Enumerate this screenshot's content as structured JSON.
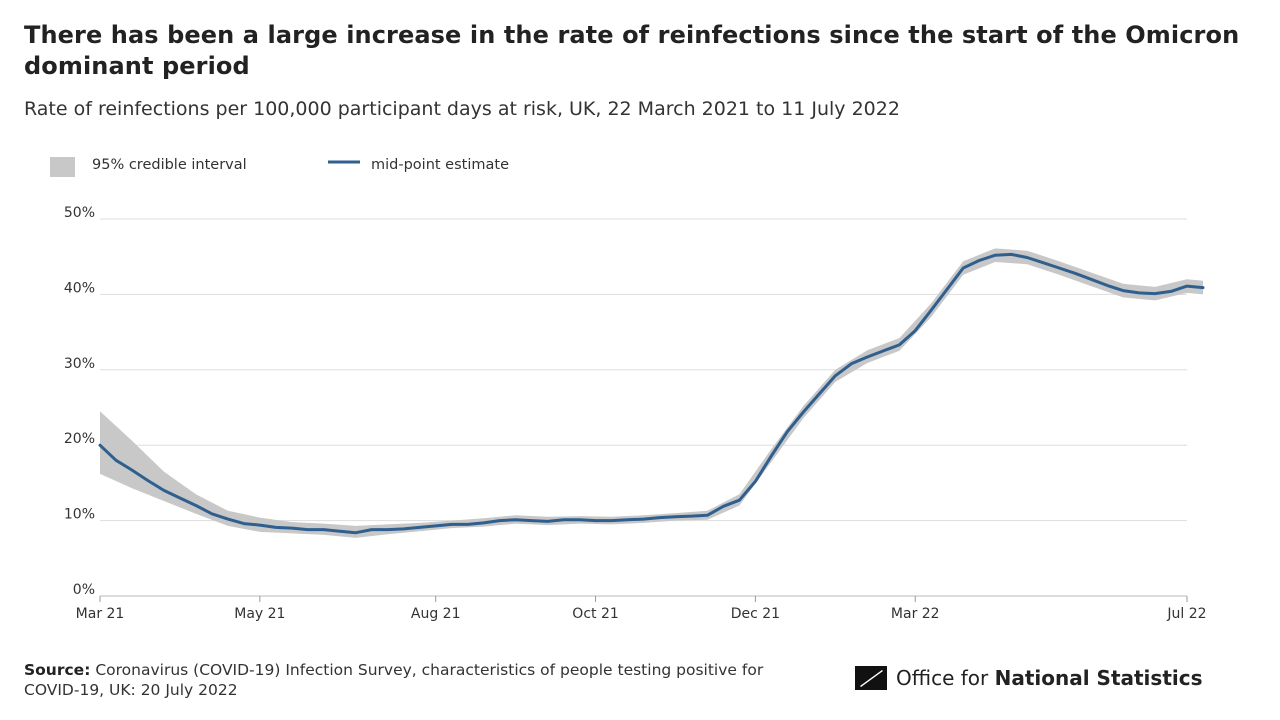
{
  "chart_data": {
    "type": "line",
    "title": "There has been a large increase in the rate of reinfections since the start of the Omicron dominant period",
    "subtitle": "Rate of reinfections per 100,000 participant days at risk, UK, 22 March 2021 to 11 July 2022",
    "x_range": [
      "2021-03-22",
      "2022-07-11"
    ],
    "ylim": [
      0,
      50
    ],
    "grid": true,
    "legend_position": "top-left",
    "y_ticks": [
      {
        "value": 0,
        "label": "0%"
      },
      {
        "value": 10,
        "label": "10%"
      },
      {
        "value": 20,
        "label": "20%"
      },
      {
        "value": 30,
        "label": "30%"
      },
      {
        "value": 40,
        "label": "40%"
      },
      {
        "value": 50,
        "label": "50%"
      }
    ],
    "x_ticks": [
      {
        "date": "2021-03-22",
        "label": "Mar 21"
      },
      {
        "date": "2021-05-31",
        "label": "May 21"
      },
      {
        "date": "2021-08-16",
        "label": "Aug 21"
      },
      {
        "date": "2021-10-25",
        "label": "Oct 21"
      },
      {
        "date": "2022-01-03",
        "label": "Dec 21"
      },
      {
        "date": "2022-03-14",
        "label": "Mar 22"
      },
      {
        "date": "2022-07-11",
        "label": "Jul 22"
      }
    ],
    "legend": [
      {
        "label": "95% credible interval",
        "kind": "band",
        "color": "#c8c8c8"
      },
      {
        "label": "mid-point estimate",
        "kind": "line",
        "color": "#2f5f8f"
      }
    ],
    "series": [
      {
        "name": "mid-point estimate",
        "color": "#2f5f8f",
        "points": [
          {
            "date": "2021-03-22",
            "value": 20.0
          },
          {
            "date": "2021-03-29",
            "value": 18.0
          },
          {
            "date": "2021-04-05",
            "value": 16.7
          },
          {
            "date": "2021-04-12",
            "value": 15.3
          },
          {
            "date": "2021-04-19",
            "value": 14.0
          },
          {
            "date": "2021-04-26",
            "value": 13.0
          },
          {
            "date": "2021-05-03",
            "value": 12.0
          },
          {
            "date": "2021-05-10",
            "value": 10.9
          },
          {
            "date": "2021-05-17",
            "value": 10.2
          },
          {
            "date": "2021-05-24",
            "value": 9.6
          },
          {
            "date": "2021-05-31",
            "value": 9.4
          },
          {
            "date": "2021-06-07",
            "value": 9.1
          },
          {
            "date": "2021-06-14",
            "value": 9.0
          },
          {
            "date": "2021-06-21",
            "value": 8.8
          },
          {
            "date": "2021-06-28",
            "value": 8.8
          },
          {
            "date": "2021-07-05",
            "value": 8.6
          },
          {
            "date": "2021-07-12",
            "value": 8.4
          },
          {
            "date": "2021-07-19",
            "value": 8.8
          },
          {
            "date": "2021-07-26",
            "value": 8.8
          },
          {
            "date": "2021-08-02",
            "value": 8.9
          },
          {
            "date": "2021-08-09",
            "value": 9.1
          },
          {
            "date": "2021-08-16",
            "value": 9.3
          },
          {
            "date": "2021-08-23",
            "value": 9.5
          },
          {
            "date": "2021-08-30",
            "value": 9.5
          },
          {
            "date": "2021-09-06",
            "value": 9.7
          },
          {
            "date": "2021-09-13",
            "value": 10.0
          },
          {
            "date": "2021-09-20",
            "value": 10.1
          },
          {
            "date": "2021-09-27",
            "value": 10.0
          },
          {
            "date": "2021-10-04",
            "value": 9.9
          },
          {
            "date": "2021-10-11",
            "value": 10.1
          },
          {
            "date": "2021-10-18",
            "value": 10.1
          },
          {
            "date": "2021-10-25",
            "value": 10.0
          },
          {
            "date": "2021-11-01",
            "value": 10.0
          },
          {
            "date": "2021-11-08",
            "value": 10.1
          },
          {
            "date": "2021-11-15",
            "value": 10.2
          },
          {
            "date": "2021-11-22",
            "value": 10.4
          },
          {
            "date": "2021-11-29",
            "value": 10.5
          },
          {
            "date": "2021-12-06",
            "value": 10.6
          },
          {
            "date": "2021-12-13",
            "value": 10.7
          },
          {
            "date": "2021-12-20",
            "value": 11.9
          },
          {
            "date": "2021-12-27",
            "value": 12.7
          },
          {
            "date": "2022-01-03",
            "value": 15.2
          },
          {
            "date": "2022-01-10",
            "value": 18.6
          },
          {
            "date": "2022-01-17",
            "value": 21.8
          },
          {
            "date": "2022-01-24",
            "value": 24.4
          },
          {
            "date": "2022-01-31",
            "value": 26.8
          },
          {
            "date": "2022-02-07",
            "value": 29.2
          },
          {
            "date": "2022-02-14",
            "value": 30.8
          },
          {
            "date": "2022-02-21",
            "value": 31.7
          },
          {
            "date": "2022-02-28",
            "value": 32.5
          },
          {
            "date": "2022-03-07",
            "value": 33.3
          },
          {
            "date": "2022-03-14",
            "value": 35.2
          },
          {
            "date": "2022-03-21",
            "value": 37.9
          },
          {
            "date": "2022-03-28",
            "value": 40.7
          },
          {
            "date": "2022-04-04",
            "value": 43.5
          },
          {
            "date": "2022-04-11",
            "value": 44.5
          },
          {
            "date": "2022-04-18",
            "value": 45.2
          },
          {
            "date": "2022-04-25",
            "value": 45.3
          },
          {
            "date": "2022-05-02",
            "value": 44.9
          },
          {
            "date": "2022-05-09",
            "value": 44.2
          },
          {
            "date": "2022-05-16",
            "value": 43.5
          },
          {
            "date": "2022-05-23",
            "value": 42.8
          },
          {
            "date": "2022-05-30",
            "value": 42.0
          },
          {
            "date": "2022-06-06",
            "value": 41.2
          },
          {
            "date": "2022-06-13",
            "value": 40.5
          },
          {
            "date": "2022-06-20",
            "value": 40.2
          },
          {
            "date": "2022-06-27",
            "value": 40.1
          },
          {
            "date": "2022-07-04",
            "value": 40.4
          },
          {
            "date": "2022-07-11",
            "value": 41.1
          },
          {
            "date": "2022-07-18",
            "value": 40.9
          }
        ]
      }
    ],
    "credible_interval": {
      "name": "95% credible interval",
      "color": "#c8c8c8",
      "points": [
        {
          "date": "2021-03-22",
          "low": 16.2,
          "high": 24.5
        },
        {
          "date": "2021-04-05",
          "low": 14.3,
          "high": 20.6
        },
        {
          "date": "2021-04-19",
          "low": 12.6,
          "high": 16.5
        },
        {
          "date": "2021-05-03",
          "low": 10.9,
          "high": 13.5
        },
        {
          "date": "2021-05-17",
          "low": 9.3,
          "high": 11.3
        },
        {
          "date": "2021-05-31",
          "low": 8.5,
          "high": 10.4
        },
        {
          "date": "2021-06-14",
          "low": 8.3,
          "high": 9.8
        },
        {
          "date": "2021-06-28",
          "low": 8.1,
          "high": 9.6
        },
        {
          "date": "2021-07-12",
          "low": 7.7,
          "high": 9.3
        },
        {
          "date": "2021-07-26",
          "low": 8.2,
          "high": 9.5
        },
        {
          "date": "2021-08-09",
          "low": 8.6,
          "high": 9.7
        },
        {
          "date": "2021-08-23",
          "low": 9.0,
          "high": 10.0
        },
        {
          "date": "2021-09-06",
          "low": 9.2,
          "high": 10.3
        },
        {
          "date": "2021-09-20",
          "low": 9.6,
          "high": 10.7
        },
        {
          "date": "2021-10-04",
          "low": 9.4,
          "high": 10.5
        },
        {
          "date": "2021-10-18",
          "low": 9.6,
          "high": 10.6
        },
        {
          "date": "2021-11-01",
          "low": 9.5,
          "high": 10.5
        },
        {
          "date": "2021-11-15",
          "low": 9.7,
          "high": 10.7
        },
        {
          "date": "2021-11-29",
          "low": 10.0,
          "high": 11.0
        },
        {
          "date": "2021-12-13",
          "low": 10.1,
          "high": 11.3
        },
        {
          "date": "2021-12-27",
          "low": 12.0,
          "high": 13.5
        },
        {
          "date": "2022-01-10",
          "low": 17.8,
          "high": 19.5
        },
        {
          "date": "2022-01-24",
          "low": 23.6,
          "high": 25.2
        },
        {
          "date": "2022-02-07",
          "low": 28.4,
          "high": 30.0
        },
        {
          "date": "2022-02-21",
          "low": 30.9,
          "high": 32.6
        },
        {
          "date": "2022-03-07",
          "low": 32.5,
          "high": 34.2
        },
        {
          "date": "2022-03-21",
          "low": 37.0,
          "high": 38.8
        },
        {
          "date": "2022-04-04",
          "low": 42.6,
          "high": 44.4
        },
        {
          "date": "2022-04-18",
          "low": 44.3,
          "high": 46.1
        },
        {
          "date": "2022-05-02",
          "low": 44.0,
          "high": 45.8
        },
        {
          "date": "2022-05-16",
          "low": 42.6,
          "high": 44.4
        },
        {
          "date": "2022-05-30",
          "low": 41.1,
          "high": 42.9
        },
        {
          "date": "2022-06-13",
          "low": 39.6,
          "high": 41.4
        },
        {
          "date": "2022-06-27",
          "low": 39.2,
          "high": 41.0
        },
        {
          "date": "2022-07-11",
          "low": 40.2,
          "high": 42.0
        },
        {
          "date": "2022-07-18",
          "low": 40.0,
          "high": 41.8
        }
      ]
    }
  },
  "source": {
    "label": "Source:",
    "text": "Coronavirus (COVID-19) Infection Survey, characteristics of people testing positive for COVID-19, UK: 20 July 2022"
  },
  "logo": {
    "prefix": "Office for ",
    "strong": "National Statistics",
    "icon": "ons-logo-icon"
  }
}
